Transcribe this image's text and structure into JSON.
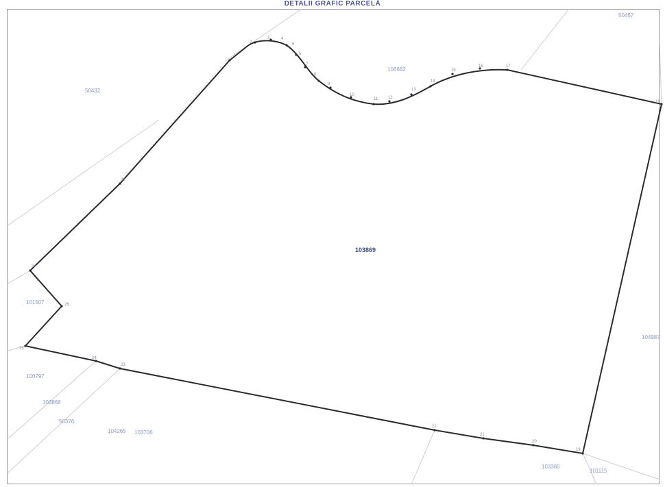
{
  "title": "DETALII GRAFIC PARCELĂ",
  "center_parcel": "103869",
  "neighbor_parcels": [
    {
      "id": "parcel-top-right",
      "label": "50467"
    },
    {
      "id": "parcel-top-middle",
      "label": "106682"
    },
    {
      "id": "parcel-top-left",
      "label": "50432"
    },
    {
      "id": "parcel-left",
      "label": "101507"
    },
    {
      "id": "parcel-right",
      "label": "104987"
    },
    {
      "id": "parcel-bottom-left-1",
      "label": "100797"
    },
    {
      "id": "parcel-bottom-left-2",
      "label": "103868"
    },
    {
      "id": "parcel-bottom-left-3",
      "label": "50376"
    },
    {
      "id": "parcel-bottom-left-4",
      "label": "104265"
    },
    {
      "id": "parcel-bottom-left-5",
      "label": "103706"
    },
    {
      "id": "parcel-bottom-right-1",
      "label": "103380"
    },
    {
      "id": "parcel-bottom-right-2",
      "label": "101115"
    }
  ],
  "vertex_labels": [
    "1",
    "2",
    "3",
    "4",
    "5",
    "6",
    "7",
    "8",
    "9",
    "10",
    "11",
    "12",
    "13",
    "14",
    "15",
    "16",
    "17",
    "18",
    "19",
    "20",
    "21",
    "22",
    "23",
    "24",
    "25",
    "26",
    "27",
    "28",
    "29",
    "30"
  ],
  "colors": {
    "boundary": "#2b2b2b",
    "neighbor_lines": "#c9c9c9",
    "labels": "#8a9cc8",
    "title": "#4b4fa6"
  }
}
